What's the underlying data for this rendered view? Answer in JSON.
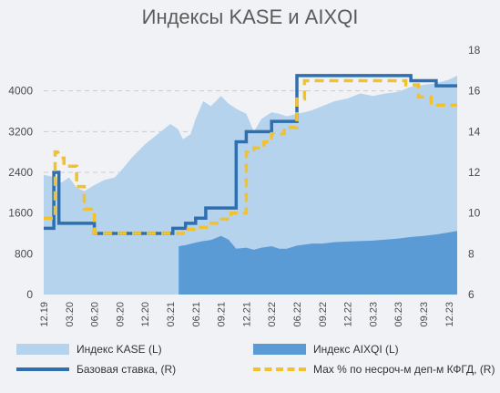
{
  "chart_data": {
    "type": "area",
    "title": "Индексы KASE и AIXQI",
    "x_ticks": [
      "12.19",
      "03.20",
      "06.20",
      "09.20",
      "12.20",
      "03.21",
      "06.21",
      "09.21",
      "12.21",
      "03.22",
      "06.22",
      "09.22",
      "12.22",
      "03.23",
      "06.23",
      "09.23",
      "12.23"
    ],
    "y_left": {
      "range": [
        0,
        4800
      ],
      "ticks": [
        0,
        800,
        1600,
        2400,
        3200,
        4000
      ]
    },
    "y_right": {
      "range": [
        6,
        18
      ],
      "ticks": [
        6,
        8,
        10,
        12,
        14,
        16,
        18
      ]
    },
    "grid": true,
    "legend_position": "bottom",
    "series": [
      {
        "name": "Индекс KASE (L)",
        "axis": "left",
        "type": "area",
        "color": "#b6d3ee",
        "x": [
          0,
          0.3,
          0.7,
          1,
          1.3,
          1.6,
          2,
          2.4,
          2.8,
          3,
          3.5,
          4,
          4.5,
          5,
          5.3,
          5.5,
          5.8,
          6,
          6.3,
          6.6,
          7,
          7.3,
          7.6,
          8,
          8.3,
          8.6,
          9,
          9.3,
          9.6,
          10,
          10.3,
          10.6,
          11,
          11.5,
          12,
          12.5,
          13,
          13.5,
          14,
          14.5,
          15,
          15.5,
          16,
          16.33
        ],
        "values": [
          2350,
          2320,
          2200,
          2300,
          2100,
          2030,
          2150,
          2250,
          2300,
          2400,
          2700,
          2950,
          3150,
          3350,
          3250,
          3050,
          3150,
          3450,
          3800,
          3700,
          3900,
          3750,
          3650,
          3550,
          3200,
          3450,
          3580,
          3550,
          3500,
          3550,
          3580,
          3620,
          3700,
          3800,
          3850,
          3950,
          3900,
          3950,
          3980,
          4080,
          4120,
          4150,
          4220,
          4300
        ]
      },
      {
        "name": "Индекс AIXQI (L)",
        "axis": "left",
        "type": "area",
        "color": "#5b9bd5",
        "start_index": 5.33,
        "x": [
          5.33,
          5.6,
          6,
          6.3,
          6.6,
          7,
          7.3,
          7.6,
          8,
          8.3,
          8.6,
          9,
          9.3,
          9.6,
          10,
          10.3,
          10.6,
          11,
          11.5,
          12,
          12.5,
          13,
          13.5,
          14,
          14.5,
          15,
          15.5,
          16,
          16.33
        ],
        "values": [
          950,
          970,
          1020,
          1050,
          1070,
          1150,
          1080,
          900,
          920,
          880,
          920,
          950,
          900,
          900,
          960,
          980,
          1000,
          1000,
          1030,
          1040,
          1050,
          1060,
          1080,
          1100,
          1130,
          1150,
          1180,
          1220,
          1250
        ]
      },
      {
        "name": "Базовая ставка, (R)",
        "axis": "right",
        "type": "step",
        "color": "#2e6fb0",
        "x": [
          0,
          0.4,
          0.4,
          0.6,
          0.6,
          1,
          1,
          2,
          2,
          5.1,
          5.1,
          5.6,
          5.6,
          6,
          6,
          6.4,
          6.4,
          7,
          7,
          7.6,
          7.6,
          8,
          8,
          8.4,
          8.4,
          9,
          9,
          9.5,
          9.5,
          10,
          10,
          10.3,
          10.3,
          11,
          11,
          13,
          13,
          14.5,
          14.5,
          15.5,
          15.5,
          16.33
        ],
        "values": [
          9.25,
          9.25,
          12,
          12,
          9.5,
          9.5,
          9.5,
          9.5,
          9.0,
          9.0,
          9.25,
          9.25,
          9.5,
          9.5,
          9.75,
          9.75,
          10.25,
          10.25,
          10.25,
          10.25,
          13.5,
          13.5,
          14,
          14,
          14,
          14,
          14.5,
          14.5,
          14.5,
          14.5,
          16.75,
          16.75,
          16.75,
          16.75,
          16.75,
          16.75,
          16.75,
          16.75,
          16.5,
          16.5,
          16.25,
          16.25
        ]
      },
      {
        "name": "Мах % по несроч-м деп-м КФГД, (R)",
        "axis": "right",
        "type": "step",
        "color": "#f2c12e",
        "dashed": true,
        "x": [
          0,
          0.45,
          0.45,
          0.55,
          0.7,
          0.8,
          0.8,
          1,
          1,
          1.3,
          1.3,
          1.6,
          1.6,
          2,
          2,
          5.3,
          5.3,
          5.7,
          5.7,
          6,
          6,
          6.5,
          6.5,
          7,
          7,
          7.4,
          7.4,
          8,
          8,
          8.3,
          8.3,
          8.7,
          8.7,
          9,
          9,
          9.5,
          9.5,
          10,
          10,
          10.3,
          10.3,
          11,
          11,
          14.3,
          14.3,
          14.8,
          14.8,
          15.3,
          15.3,
          16.33
        ],
        "values": [
          9.75,
          9.75,
          13,
          13,
          12.7,
          12.7,
          12.3,
          12.3,
          12.3,
          12.3,
          11.3,
          11.3,
          10.2,
          10.2,
          9,
          9,
          9,
          9,
          9.2,
          9.2,
          9.3,
          9.3,
          9.5,
          9.5,
          9.7,
          9.7,
          10,
          10,
          13,
          13,
          13.2,
          13.2,
          13.5,
          13.5,
          13.9,
          13.9,
          14.2,
          14.2,
          15.6,
          15.6,
          16.5,
          16.5,
          16.5,
          16.5,
          16.3,
          16.3,
          15.7,
          15.7,
          15.3,
          15.3
        ]
      }
    ],
    "legend": [
      "Индекс KASE (L)",
      "Индекс AIXQI (L)",
      "Базовая ставка, (R)",
      "Мах % по несроч-м деп-м КФГД, (R)"
    ]
  }
}
